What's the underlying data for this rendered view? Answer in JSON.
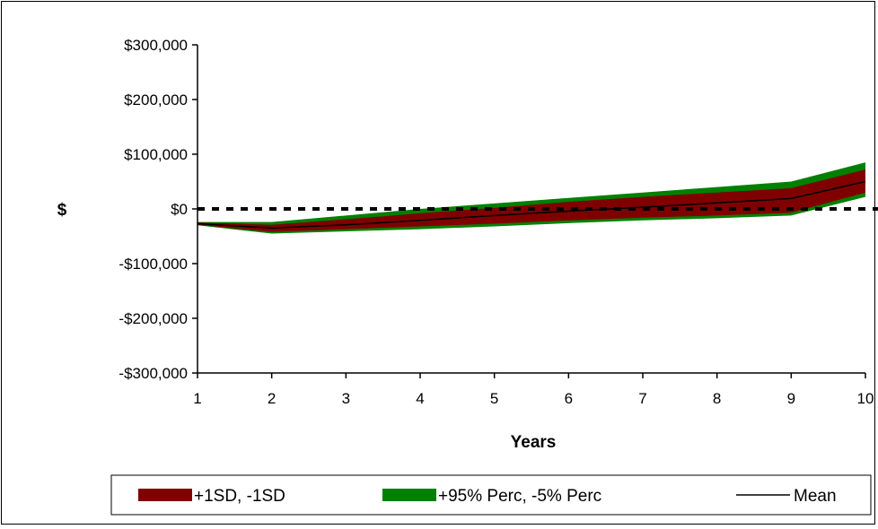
{
  "chart_data": {
    "type": "area",
    "x": [
      1,
      2,
      3,
      4,
      5,
      6,
      7,
      8,
      9,
      10
    ],
    "xlabel": "Years",
    "ylabel": "$",
    "ylim": [
      -300000,
      300000
    ],
    "yticks": [
      300000,
      200000,
      100000,
      0,
      -100000,
      -200000,
      -300000
    ],
    "ytick_labels": [
      "$300,000",
      "$200,000",
      "$100,000",
      "$0",
      "-$100,000",
      "-$200,000",
      "-$300,000"
    ],
    "xtick_labels": [
      "1",
      "2",
      "3",
      "4",
      "5",
      "6",
      "7",
      "8",
      "9",
      "10"
    ],
    "grid": false,
    "reference_line": {
      "y": 0,
      "style": "dotted",
      "color": "#000000"
    },
    "legend_position": "bottom",
    "series": [
      {
        "name": "+95% Perc, -5% Perc",
        "color": "#008000",
        "upper": [
          -24000,
          -24000,
          -12000,
          0,
          10000,
          20000,
          30000,
          40000,
          50000,
          85000
        ],
        "lower": [
          -30000,
          -45000,
          -41000,
          -37000,
          -32000,
          -26000,
          -21000,
          -17000,
          -12000,
          22000
        ]
      },
      {
        "name": "+1SD, -1SD",
        "color": "#800000",
        "upper": [
          -25000,
          -29000,
          -19000,
          -8000,
          2000,
          13000,
          22000,
          30000,
          38000,
          72000
        ],
        "lower": [
          -29000,
          -42000,
          -37000,
          -32000,
          -27000,
          -21000,
          -16000,
          -12000,
          -7000,
          30000
        ]
      },
      {
        "name": "Mean",
        "color": "#000000",
        "values": [
          -27000,
          -35000,
          -29000,
          -21000,
          -12000,
          -4000,
          3000,
          11000,
          19000,
          50000
        ]
      }
    ]
  }
}
